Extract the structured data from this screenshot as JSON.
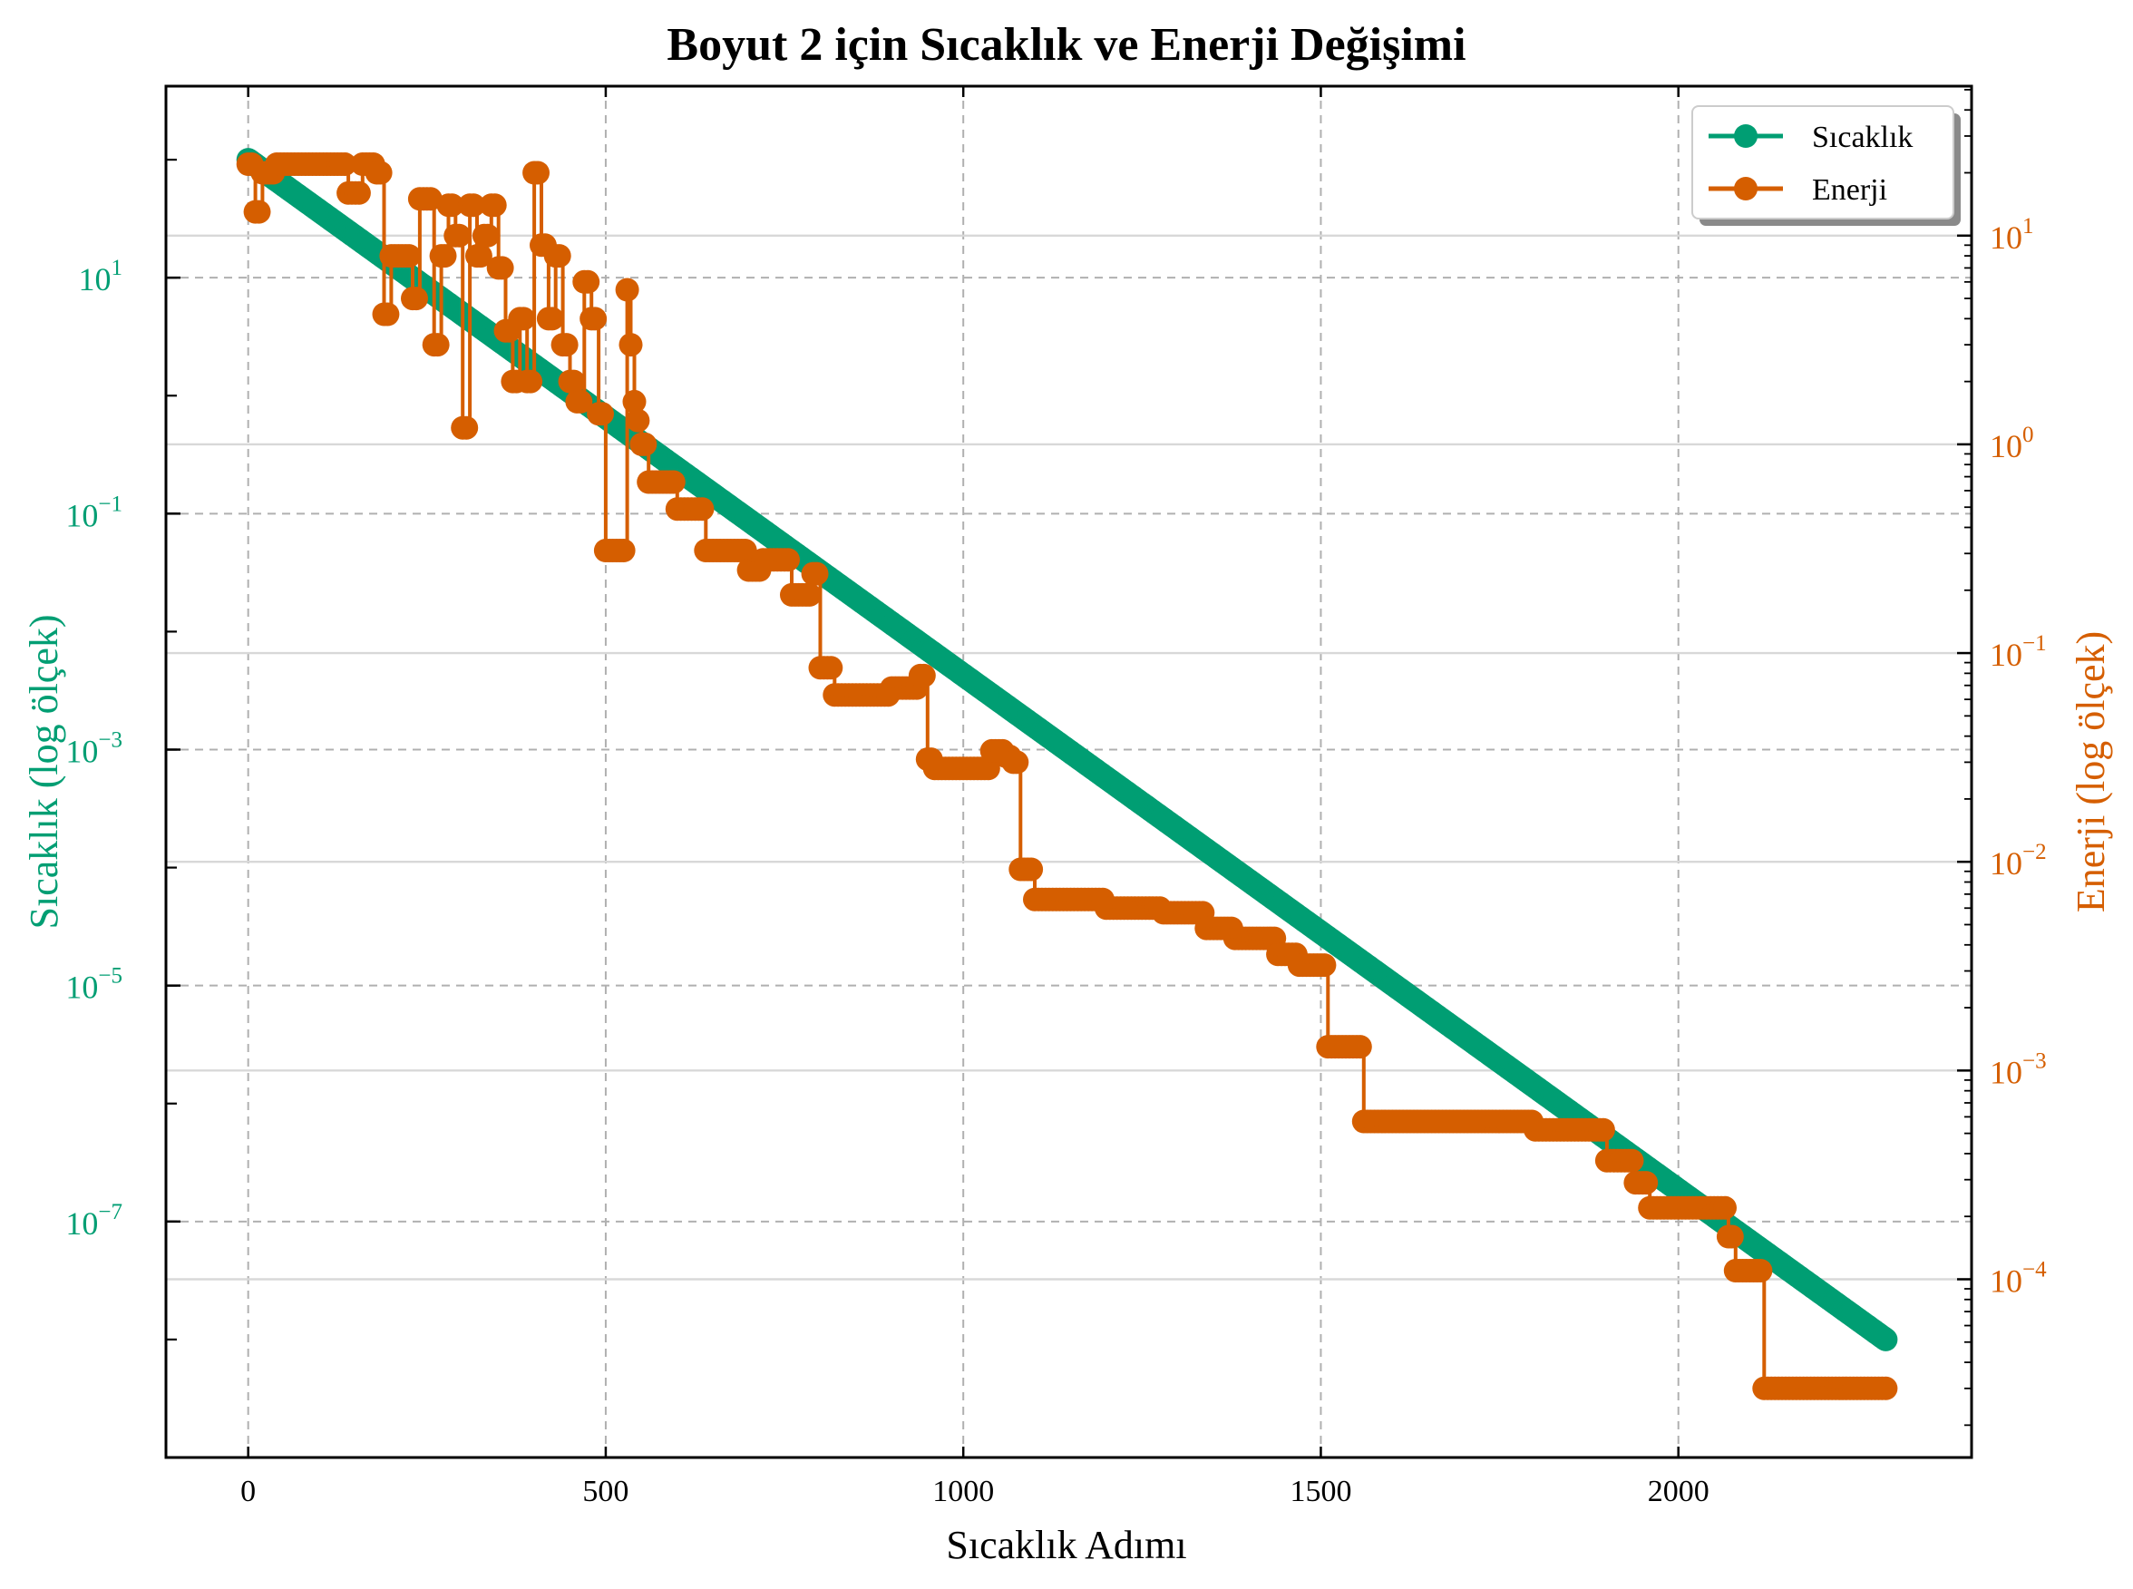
{
  "chart_data": {
    "type": "line",
    "title": "Boyut 2 için Sıcaklık ve Enerji Değişimi",
    "xlabel": "Sıcaklık Adımı",
    "ylabel_left": "Sıcaklık (log ölçek)",
    "ylabel_right": "Enerji (log ölçek)",
    "xlim": [
      -115,
      2410
    ],
    "ylim_left": [
      1e-09,
      420
    ],
    "ylim_right": [
      1.4e-05,
      52
    ],
    "yscale_left": "log",
    "yscale_right": "log",
    "grid": true,
    "legend_position": "top-right",
    "x_ticks": [
      "0",
      "500",
      "1000",
      "1500",
      "2000"
    ],
    "y_left_ticks": [
      {
        "base": "10",
        "exp": "1"
      },
      {
        "base": "10",
        "exp": "−1"
      },
      {
        "base": "10",
        "exp": "−3"
      },
      {
        "base": "10",
        "exp": "−5"
      },
      {
        "base": "10",
        "exp": "−7"
      }
    ],
    "y_right_ticks": [
      {
        "base": "10",
        "exp": "1"
      },
      {
        "base": "10",
        "exp": "0"
      },
      {
        "base": "10",
        "exp": "−1"
      },
      {
        "base": "10",
        "exp": "−2"
      },
      {
        "base": "10",
        "exp": "−3"
      },
      {
        "base": "10",
        "exp": "−4"
      }
    ],
    "colors": {
      "sicaklik": "#009E73",
      "enerji": "#D55E00"
    },
    "series": [
      {
        "name": "Sıcaklık",
        "axis": "left",
        "marker": "circle",
        "x": [
          0,
          2290
        ],
        "values": [
          100,
          1e-08
        ],
        "note_decay": "geometric, factor 0.99 per step (one point per step)"
      },
      {
        "name": "Enerji",
        "axis": "right",
        "marker": "circle",
        "step": true,
        "x": [
          0,
          10,
          20,
          40,
          60,
          100,
          140,
          160,
          180,
          190,
          200,
          220,
          230,
          240,
          260,
          270,
          280,
          290,
          300,
          310,
          320,
          330,
          340,
          350,
          360,
          370,
          380,
          390,
          400,
          410,
          420,
          430,
          440,
          450,
          460,
          470,
          480,
          490,
          500,
          520,
          525,
          530,
          535,
          540,
          545,
          550,
          560,
          580,
          600,
          610,
          640,
          680,
          700,
          720,
          740,
          760,
          790,
          800,
          810,
          820,
          860,
          880,
          900,
          930,
          940,
          950,
          960,
          1000,
          1020,
          1040,
          1060,
          1070,
          1080,
          1100,
          1170,
          1200,
          1250,
          1280,
          1320,
          1340,
          1380,
          1400,
          1440,
          1470,
          1500,
          1510,
          1560,
          1570,
          1620,
          1720,
          1760,
          1800,
          1830,
          1850,
          1900,
          1920,
          1940,
          1960,
          2000,
          2060,
          2070,
          2080,
          2100,
          2120,
          2290
        ],
        "values": [
          22,
          13,
          20,
          22,
          22,
          22,
          16,
          22,
          20,
          4.2,
          8.0,
          8.0,
          5.0,
          15,
          3.0,
          8.0,
          14,
          10,
          1.2,
          14,
          8.0,
          10,
          14,
          7.0,
          3.5,
          2.0,
          4.0,
          2.0,
          20,
          9.0,
          4.0,
          8.0,
          3.0,
          2.0,
          1.6,
          6.0,
          4.0,
          1.4,
          0.31,
          0.31,
          0.31,
          5.5,
          3.0,
          1.6,
          1.3,
          1.0,
          0.66,
          0.66,
          0.49,
          0.49,
          0.31,
          0.31,
          0.25,
          0.28,
          0.28,
          0.19,
          0.24,
          0.085,
          0.085,
          0.063,
          0.063,
          0.063,
          0.068,
          0.068,
          0.078,
          0.031,
          0.028,
          0.028,
          0.028,
          0.034,
          0.032,
          0.03,
          0.0092,
          0.0066,
          0.0066,
          0.006,
          0.006,
          0.0057,
          0.0057,
          0.0048,
          0.0043,
          0.0043,
          0.0036,
          0.0032,
          0.0032,
          0.0013,
          0.00057,
          0.00057,
          0.00057,
          0.00057,
          0.00057,
          0.00052,
          0.00052,
          0.00052,
          0.00037,
          0.00037,
          0.00029,
          0.00022,
          0.00022,
          0.00022,
          0.00016,
          0.00011,
          0.00011,
          3e-05,
          3e-05
        ]
      }
    ]
  }
}
